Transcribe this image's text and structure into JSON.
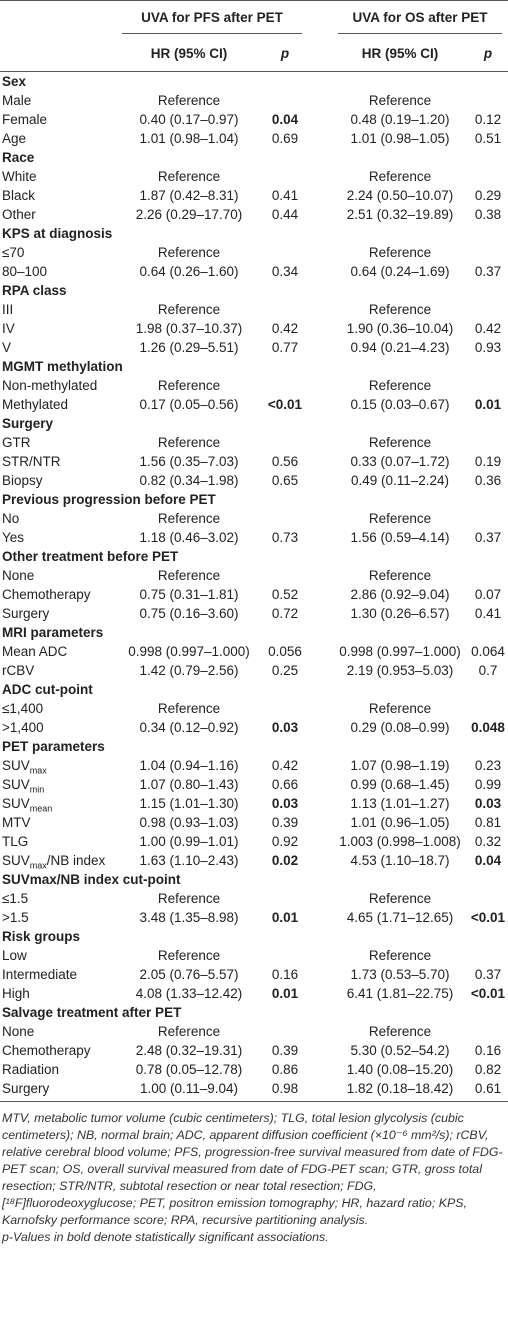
{
  "header": {
    "group_pfs": "UVA for PFS after PET",
    "group_os": "UVA for OS after PET",
    "hr_pfs": "HR (95% CI)",
    "p_pfs": "p",
    "hr_os": "HR (95% CI)",
    "p_os": "p"
  },
  "sections": [
    {
      "title": "Sex",
      "rows": [
        {
          "label": [
            {
              "text": "Male"
            }
          ],
          "hr_pfs": "Reference",
          "hr_os": "Reference"
        },
        {
          "label": [
            {
              "text": "Female"
            }
          ],
          "hr_pfs": "0.40 (0.17–0.97)",
          "p_pfs": "0.04",
          "hr_os": "0.48 (0.19–1.20)",
          "p_os": "0.12",
          "bold": [
            "p_pfs"
          ]
        },
        {
          "label": [
            {
              "text": "Age"
            }
          ],
          "hr_pfs": "1.01 (0.98–1.04)",
          "p_pfs": "0.69",
          "hr_os": "1.01 (0.98–1.05)",
          "p_os": "0.51"
        }
      ]
    },
    {
      "title": "Race",
      "rows": [
        {
          "label": [
            {
              "text": "White"
            }
          ],
          "hr_pfs": "Reference",
          "hr_os": "Reference"
        },
        {
          "label": [
            {
              "text": "Black"
            }
          ],
          "hr_pfs": "1.87 (0.42–8.31)",
          "p_pfs": "0.41",
          "hr_os": "2.24 (0.50–10.07)",
          "p_os": "0.29"
        },
        {
          "label": [
            {
              "text": "Other"
            }
          ],
          "hr_pfs": "2.26 (0.29–17.70)",
          "p_pfs": "0.44",
          "hr_os": "2.51 (0.32–19.89)",
          "p_os": "0.38"
        }
      ]
    },
    {
      "title": "KPS at diagnosis",
      "rows": [
        {
          "label": [
            {
              "text": "≤70"
            }
          ],
          "hr_pfs": "Reference",
          "hr_os": "Reference"
        },
        {
          "label": [
            {
              "text": "80–100"
            }
          ],
          "hr_pfs": "0.64 (0.26–1.60)",
          "p_pfs": "0.34",
          "hr_os": "0.64 (0.24–1.69)",
          "p_os": "0.37"
        }
      ]
    },
    {
      "title": "RPA class",
      "rows": [
        {
          "label": [
            {
              "text": "III"
            }
          ],
          "hr_pfs": "Reference",
          "hr_os": "Reference"
        },
        {
          "label": [
            {
              "text": "IV"
            }
          ],
          "hr_pfs": "1.98 (0.37–10.37)",
          "p_pfs": "0.42",
          "hr_os": "1.90 (0.36–10.04)",
          "p_os": "0.42"
        },
        {
          "label": [
            {
              "text": "V"
            }
          ],
          "hr_pfs": "1.26 (0.29–5.51)",
          "p_pfs": "0.77",
          "hr_os": "0.94 (0.21–4.23)",
          "p_os": "0.93"
        }
      ]
    },
    {
      "title": "MGMT methylation",
      "rows": [
        {
          "label": [
            {
              "text": "Non-methylated"
            }
          ],
          "hr_pfs": "Reference",
          "hr_os": "Reference"
        },
        {
          "label": [
            {
              "text": "Methylated"
            }
          ],
          "hr_pfs": "0.17 (0.05–0.56)",
          "p_pfs": "<0.01",
          "hr_os": "0.15 (0.03–0.67)",
          "p_os": "0.01",
          "bold": [
            "p_pfs",
            "p_os"
          ]
        }
      ]
    },
    {
      "title": "Surgery",
      "rows": [
        {
          "label": [
            {
              "text": "GTR"
            }
          ],
          "hr_pfs": "Reference",
          "hr_os": "Reference"
        },
        {
          "label": [
            {
              "text": "STR/NTR"
            }
          ],
          "hr_pfs": "1.56 (0.35–7.03)",
          "p_pfs": "0.56",
          "hr_os": "0.33 (0.07–1.72)",
          "p_os": "0.19"
        },
        {
          "label": [
            {
              "text": "Biopsy"
            }
          ],
          "hr_pfs": "0.82 (0.34–1.98)",
          "p_pfs": "0.65",
          "hr_os": "0.49 (0.11–2.24)",
          "p_os": "0.36"
        }
      ]
    },
    {
      "title": "Previous progression before PET",
      "rows": [
        {
          "label": [
            {
              "text": "No"
            }
          ],
          "hr_pfs": "Reference",
          "hr_os": "Reference"
        },
        {
          "label": [
            {
              "text": "Yes"
            }
          ],
          "hr_pfs": "1.18 (0.46–3.02)",
          "p_pfs": "0.73",
          "hr_os": "1.56 (0.59–4.14)",
          "p_os": "0.37"
        }
      ]
    },
    {
      "title": "Other treatment before PET",
      "rows": [
        {
          "label": [
            {
              "text": "None"
            }
          ],
          "hr_pfs": "Reference",
          "hr_os": "Reference"
        },
        {
          "label": [
            {
              "text": "Chemotherapy"
            }
          ],
          "hr_pfs": "0.75 (0.31–1.81)",
          "p_pfs": "0.52",
          "hr_os": "2.86 (0.92–9.04)",
          "p_os": "0.07"
        },
        {
          "label": [
            {
              "text": "Surgery"
            }
          ],
          "hr_pfs": "0.75 (0.16–3.60)",
          "p_pfs": "0.72",
          "hr_os": "1.30 (0.26–6.57)",
          "p_os": "0.41"
        }
      ]
    },
    {
      "title": "MRI parameters",
      "rows": [
        {
          "label": [
            {
              "text": "Mean ADC"
            }
          ],
          "hr_pfs": "0.998 (0.997–1.000)",
          "p_pfs": "0.056",
          "hr_os": "0.998 (0.997–1.000)",
          "p_os": "0.064"
        },
        {
          "label": [
            {
              "text": "rCBV"
            }
          ],
          "hr_pfs": "1.42 (0.79–2.56)",
          "p_pfs": "0.25",
          "hr_os": "2.19 (0.953–5.03)",
          "p_os": "0.7"
        }
      ]
    },
    {
      "title": "ADC cut-point",
      "rows": [
        {
          "label": [
            {
              "text": "≤1,400"
            }
          ],
          "hr_pfs": "Reference",
          "hr_os": "Reference"
        },
        {
          "label": [
            {
              "text": ">1,400"
            }
          ],
          "hr_pfs": "0.34 (0.12–0.92)",
          "p_pfs": "0.03",
          "hr_os": "0.29 (0.08–0.99)",
          "p_os": "0.048",
          "bold": [
            "p_pfs",
            "p_os"
          ]
        }
      ]
    },
    {
      "title": "PET parameters",
      "rows": [
        {
          "label": [
            {
              "text": "SUV"
            },
            {
              "text": "max",
              "sub": true
            }
          ],
          "hr_pfs": "1.04 (0.94–1.16)",
          "p_pfs": "0.42",
          "hr_os": "1.07 (0.98–1.19)",
          "p_os": "0.23"
        },
        {
          "label": [
            {
              "text": "SUV"
            },
            {
              "text": "min",
              "sub": true
            }
          ],
          "hr_pfs": "1.07 (0.80–1.43)",
          "p_pfs": "0.66",
          "hr_os": "0.99 (0.68–1.45)",
          "p_os": "0.99"
        },
        {
          "label": [
            {
              "text": "SUV"
            },
            {
              "text": "mean",
              "sub": true
            }
          ],
          "hr_pfs": "1.15 (1.01–1.30)",
          "p_pfs": "0.03",
          "hr_os": "1.13 (1.01–1.27)",
          "p_os": "0.03",
          "bold": [
            "p_pfs",
            "p_os"
          ]
        },
        {
          "label": [
            {
              "text": "MTV"
            }
          ],
          "hr_pfs": "0.98 (0.93–1.03)",
          "p_pfs": "0.39",
          "hr_os": "1.01 (0.96–1.05)",
          "p_os": "0.81"
        },
        {
          "label": [
            {
              "text": "TLG"
            }
          ],
          "hr_pfs": "1.00 (0.99–1.01)",
          "p_pfs": "0.92",
          "hr_os": "1.003 (0.998–1.008)",
          "p_os": "0.32"
        },
        {
          "label": [
            {
              "text": "SUV"
            },
            {
              "text": "max",
              "sub": true
            },
            {
              "text": "/NB index"
            }
          ],
          "hr_pfs": "1.63 (1.10–2.43)",
          "p_pfs": "0.02",
          "hr_os": "4.53 (1.10–18.7)",
          "p_os": "0.04",
          "bold": [
            "p_pfs",
            "p_os"
          ]
        }
      ]
    },
    {
      "title": "SUVmax/NB index cut-point",
      "rows": [
        {
          "label": [
            {
              "text": "≤1.5"
            }
          ],
          "hr_pfs": "Reference",
          "hr_os": "Reference"
        },
        {
          "label": [
            {
              "text": ">1.5"
            }
          ],
          "hr_pfs": "3.48 (1.35–8.98)",
          "p_pfs": "0.01",
          "hr_os": "4.65 (1.71–12.65)",
          "p_os": "<0.01",
          "bold": [
            "p_pfs",
            "p_os"
          ]
        }
      ]
    },
    {
      "title": "Risk groups",
      "rows": [
        {
          "label": [
            {
              "text": "Low"
            }
          ],
          "hr_pfs": "Reference",
          "hr_os": "Reference"
        },
        {
          "label": [
            {
              "text": "Intermediate"
            }
          ],
          "hr_pfs": "2.05 (0.76–5.57)",
          "p_pfs": "0.16",
          "hr_os": "1.73 (0.53–5.70)",
          "p_os": "0.37"
        },
        {
          "label": [
            {
              "text": "High"
            }
          ],
          "hr_pfs": "4.08 (1.33–12.42)",
          "p_pfs": "0.01",
          "hr_os": "6.41 (1.81–22.75)",
          "p_os": "<0.01",
          "bold": [
            "p_pfs",
            "p_os"
          ]
        }
      ]
    },
    {
      "title": "Salvage treatment after PET",
      "rows": [
        {
          "label": [
            {
              "text": "None"
            }
          ],
          "hr_pfs": "Reference",
          "hr_os": "Reference"
        },
        {
          "label": [
            {
              "text": "Chemotherapy"
            }
          ],
          "hr_pfs": "2.48 (0.32–19.31)",
          "p_pfs": "0.39",
          "hr_os": "5.30 (0.52–54.2)",
          "p_os": "0.16"
        },
        {
          "label": [
            {
              "text": "Radiation"
            }
          ],
          "hr_pfs": "0.78 (0.05–12.78)",
          "p_pfs": "0.86",
          "hr_os": "1.40 (0.08–15.20)",
          "p_os": "0.82"
        },
        {
          "label": [
            {
              "text": "Surgery"
            }
          ],
          "hr_pfs": "1.00 (0.11–9.04)",
          "p_pfs": "0.98",
          "hr_os": "1.82 (0.18–18.42)",
          "p_os": "0.61"
        }
      ]
    }
  ],
  "footnote": {
    "text": "MTV, metabolic tumor volume (cubic centimeters); TLG, total lesion glycolysis (cubic centimeters); NB, normal brain; ADC, apparent diffusion coefficient (×10⁻⁶ mm²/s); rCBV, relative cerebral blood volume; PFS, progression-free survival measured from date of FDG-PET scan; OS, overall survival measured from date of FDG-PET scan; GTR, gross total resection; STR/NTR, subtotal resection or near total resection; FDG, [¹⁸F]fluorodeoxyglucose; PET, positron emission tomography; HR, hazard ratio; KPS, Karnofsky performance score; RPA, recursive partitioning analysis.",
    "note": "p-Values in bold denote statistically significant associations."
  }
}
